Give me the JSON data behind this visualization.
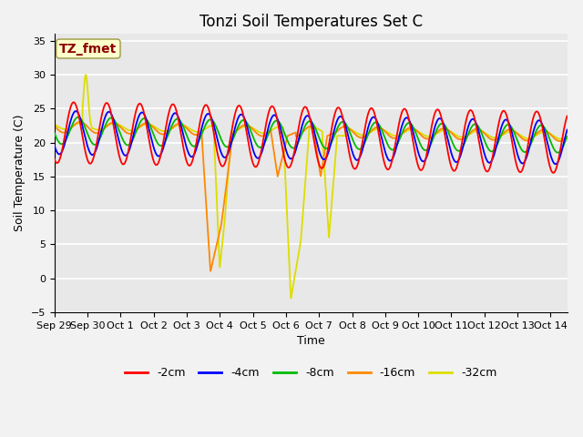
{
  "title": "Tonzi Soil Temperatures Set C",
  "xlabel": "Time",
  "ylabel": "Soil Temperature (C)",
  "xlim_days": [
    0,
    15.5
  ],
  "ylim": [
    -5,
    36
  ],
  "yticks": [
    -5,
    0,
    5,
    10,
    15,
    20,
    25,
    30,
    35
  ],
  "xtick_labels": [
    "Sep 29",
    "Sep 30",
    "Oct 1",
    "Oct 2",
    "Oct 3",
    "Oct 4",
    "Oct 5",
    "Oct 6",
    "Oct 7",
    "Oct 8",
    "Oct 9",
    "Oct 10",
    "Oct 11",
    "Oct 12",
    "Oct 13",
    "Oct 14"
  ],
  "xtick_positions": [
    0,
    1,
    2,
    3,
    4,
    5,
    6,
    7,
    8,
    9,
    10,
    11,
    12,
    13,
    14,
    15
  ],
  "annotation_text": "TZ_fmet",
  "annotation_color": "#8B0000",
  "annotation_bg": "#FFFFCC",
  "series_colors": {
    "-2cm": "#FF0000",
    "-4cm": "#0000FF",
    "-8cm": "#00BB00",
    "-16cm": "#FF8800",
    "-32cm": "#DDDD00"
  },
  "background_color": "#E8E8E8",
  "grid_color": "#FFFFFF",
  "title_fontsize": 12,
  "axis_fontsize": 9,
  "tick_fontsize": 8,
  "legend_fontsize": 9
}
